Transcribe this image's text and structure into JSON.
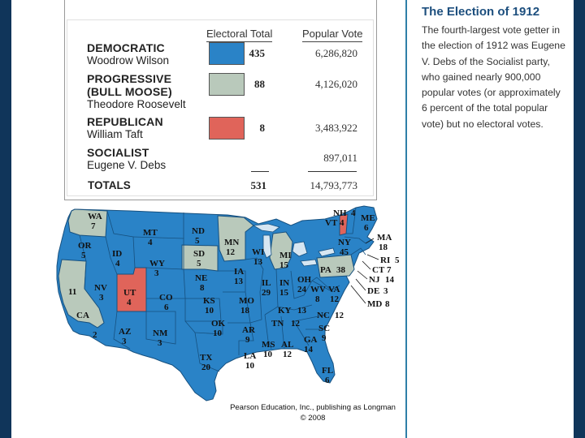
{
  "table": {
    "headers": {
      "electoral": "Electoral Total",
      "popular": "Popular Vote"
    },
    "parties": [
      {
        "party": "DEMOCRATIC",
        "candidate": "Woodrow Wilson",
        "electoral": "435",
        "popular": "6,286,820",
        "color": "#2a83c7"
      },
      {
        "party_line1": "PROGRESSIVE",
        "party_line2": "(BULL MOOSE)",
        "candidate": "Theodore Roosevelt",
        "electoral": "88",
        "popular": "4,126,020",
        "color": "#b9c9bb"
      },
      {
        "party": "REPUBLICAN",
        "candidate": "William Taft",
        "electoral": "8",
        "popular": "3,483,922",
        "color": "#e0645a"
      },
      {
        "party": "SOCIALIST",
        "candidate": "Eugene V. Debs",
        "electoral": "",
        "popular": "897,011",
        "color": ""
      }
    ],
    "totals": {
      "label": "TOTALS",
      "electoral": "531",
      "popular": "14,793,773"
    }
  },
  "sidebar": {
    "title": "The Election of 1912",
    "text": "The fourth-largest vote getter in the election of 1912 was Eugene V. Debs of the Socialist party, who gained nearly 900,000 popular votes (or approximately 6 percent of the total popular vote) but no electoral votes."
  },
  "map": {
    "states": [
      {
        "abbr": "WA",
        "ev": "7",
        "party": "progressive"
      },
      {
        "abbr": "OR",
        "ev": "5",
        "party": "democratic"
      },
      {
        "abbr": "CA",
        "ev": "11",
        "party": "progressive"
      },
      {
        "abbr": "CA",
        "ev": "2",
        "party": "democratic"
      },
      {
        "abbr": "ID",
        "ev": "4",
        "party": "democratic"
      },
      {
        "abbr": "NV",
        "ev": "3",
        "party": "democratic"
      },
      {
        "abbr": "UT",
        "ev": "4",
        "party": "republican"
      },
      {
        "abbr": "AZ",
        "ev": "3",
        "party": "democratic"
      },
      {
        "abbr": "MT",
        "ev": "4",
        "party": "democratic"
      },
      {
        "abbr": "WY",
        "ev": "3",
        "party": "democratic"
      },
      {
        "abbr": "CO",
        "ev": "6",
        "party": "democratic"
      },
      {
        "abbr": "NM",
        "ev": "3",
        "party": "democratic"
      },
      {
        "abbr": "ND",
        "ev": "5",
        "party": "democratic"
      },
      {
        "abbr": "SD",
        "ev": "5",
        "party": "progressive"
      },
      {
        "abbr": "NE",
        "ev": "8",
        "party": "democratic"
      },
      {
        "abbr": "KS",
        "ev": "10",
        "party": "democratic"
      },
      {
        "abbr": "OK",
        "ev": "10",
        "party": "democratic"
      },
      {
        "abbr": "TX",
        "ev": "20",
        "party": "democratic"
      },
      {
        "abbr": "MN",
        "ev": "12",
        "party": "progressive"
      },
      {
        "abbr": "IA",
        "ev": "13",
        "party": "democratic"
      },
      {
        "abbr": "MO",
        "ev": "18",
        "party": "democratic"
      },
      {
        "abbr": "AR",
        "ev": "9",
        "party": "democratic"
      },
      {
        "abbr": "LA",
        "ev": "10",
        "party": "democratic"
      },
      {
        "abbr": "WI",
        "ev": "13",
        "party": "democratic"
      },
      {
        "abbr": "IL",
        "ev": "29",
        "party": "democratic"
      },
      {
        "abbr": "MI",
        "ev": "15",
        "party": "progressive"
      },
      {
        "abbr": "IN",
        "ev": "15",
        "party": "democratic"
      },
      {
        "abbr": "OH",
        "ev": "24",
        "party": "democratic"
      },
      {
        "abbr": "KY",
        "ev": "13",
        "party": "democratic"
      },
      {
        "abbr": "TN",
        "ev": "12",
        "party": "democratic"
      },
      {
        "abbr": "MS",
        "ev": "10",
        "party": "democratic"
      },
      {
        "abbr": "AL",
        "ev": "12",
        "party": "democratic"
      },
      {
        "abbr": "GA",
        "ev": "14",
        "party": "democratic"
      },
      {
        "abbr": "FL",
        "ev": "6",
        "party": "democratic"
      },
      {
        "abbr": "SC",
        "ev": "9",
        "party": "democratic"
      },
      {
        "abbr": "NC",
        "ev": "12",
        "party": "democratic"
      },
      {
        "abbr": "VA",
        "ev": "12",
        "party": "democratic"
      },
      {
        "abbr": "WV",
        "ev": "8",
        "party": "democratic"
      },
      {
        "abbr": "PA",
        "ev": "38",
        "party": "progressive"
      },
      {
        "abbr": "NY",
        "ev": "45",
        "party": "democratic"
      },
      {
        "abbr": "VT",
        "ev": "4",
        "party": "republican"
      },
      {
        "abbr": "NH",
        "ev": "4",
        "party": "democratic"
      },
      {
        "abbr": "ME",
        "ev": "6",
        "party": "democratic"
      },
      {
        "abbr": "MA",
        "ev": "18",
        "party": "democratic"
      },
      {
        "abbr": "RI",
        "ev": "5",
        "party": "democratic"
      },
      {
        "abbr": "CT",
        "ev": "7",
        "party": "democratic"
      },
      {
        "abbr": "NJ",
        "ev": "14",
        "party": "democratic"
      },
      {
        "abbr": "DE",
        "ev": "3",
        "party": "democratic"
      },
      {
        "abbr": "MD",
        "ev": "8",
        "party": "democratic"
      }
    ],
    "colors": {
      "democratic": "#2a83c7",
      "progressive": "#b9c9bb",
      "republican": "#e0645a",
      "border": "#16507f",
      "lakes": "#d6e6f2"
    }
  },
  "credit": {
    "line1": "Pearson Education, Inc., publishing as Longman",
    "line2": "© 2008"
  }
}
